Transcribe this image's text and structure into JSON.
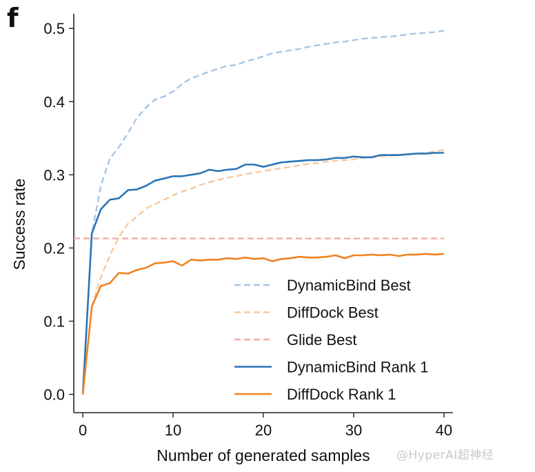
{
  "panel_label": "f",
  "watermark": "@HyperAI超神经",
  "chart_data": {
    "type": "line",
    "xlabel": "Number of generated samples",
    "ylabel": "Success rate",
    "xlim": [
      -1,
      41
    ],
    "ylim": [
      -0.025,
      0.52
    ],
    "xticks": [
      0,
      10,
      20,
      30,
      40
    ],
    "yticks": [
      0.0,
      0.1,
      0.2,
      0.3,
      0.4,
      0.5
    ],
    "ytick_labels": [
      "0.0",
      "0.1",
      "0.2",
      "0.3",
      "0.4",
      "0.5"
    ],
    "grid": false,
    "legend_position": "lower right",
    "series": [
      {
        "name": "DynamicBind Best",
        "color": "#a9c5e3",
        "style": "dashed",
        "x": [
          0,
          1,
          2,
          3,
          4,
          5,
          6,
          7,
          8,
          9,
          10,
          11,
          12,
          13,
          14,
          15,
          16,
          17,
          18,
          19,
          20,
          21,
          22,
          23,
          24,
          25,
          26,
          27,
          28,
          29,
          30,
          31,
          32,
          33,
          34,
          35,
          36,
          37,
          38,
          39,
          40
        ],
        "y": [
          0.0,
          0.22,
          0.285,
          0.322,
          0.338,
          0.357,
          0.378,
          0.392,
          0.403,
          0.407,
          0.414,
          0.424,
          0.432,
          0.436,
          0.441,
          0.445,
          0.449,
          0.45,
          0.455,
          0.458,
          0.462,
          0.466,
          0.468,
          0.47,
          0.472,
          0.475,
          0.477,
          0.479,
          0.481,
          0.482,
          0.484,
          0.486,
          0.487,
          0.488,
          0.489,
          0.49,
          0.492,
          0.493,
          0.494,
          0.495,
          0.497
        ]
      },
      {
        "name": "DiffDock Best",
        "color": "#f7c89d",
        "style": "dashed",
        "x": [
          0,
          1,
          2,
          3,
          4,
          5,
          6,
          7,
          8,
          9,
          10,
          11,
          12,
          13,
          14,
          15,
          16,
          17,
          18,
          19,
          20,
          21,
          22,
          23,
          24,
          25,
          26,
          27,
          28,
          29,
          30,
          31,
          32,
          33,
          34,
          35,
          36,
          37,
          38,
          39,
          40
        ],
        "y": [
          0.0,
          0.12,
          0.16,
          0.19,
          0.215,
          0.233,
          0.243,
          0.254,
          0.26,
          0.266,
          0.272,
          0.277,
          0.281,
          0.286,
          0.29,
          0.293,
          0.296,
          0.298,
          0.301,
          0.303,
          0.305,
          0.307,
          0.309,
          0.311,
          0.313,
          0.315,
          0.316,
          0.318,
          0.319,
          0.32,
          0.321,
          0.323,
          0.324,
          0.325,
          0.326,
          0.327,
          0.328,
          0.329,
          0.33,
          0.332,
          0.334
        ]
      },
      {
        "name": "Glide Best",
        "color": "#f2aaa9",
        "style": "dashed",
        "x": [
          -1,
          40
        ],
        "y": [
          0.213,
          0.213
        ]
      },
      {
        "name": "DynamicBind Rank 1",
        "color": "#2a74b5",
        "style": "solid",
        "x": [
          0,
          1,
          2,
          3,
          4,
          5,
          6,
          7,
          8,
          9,
          10,
          11,
          12,
          13,
          14,
          15,
          16,
          17,
          18,
          19,
          20,
          21,
          22,
          23,
          24,
          25,
          26,
          27,
          28,
          29,
          30,
          31,
          32,
          33,
          34,
          35,
          36,
          37,
          38,
          39,
          40
        ],
        "y": [
          0.0,
          0.22,
          0.253,
          0.266,
          0.268,
          0.279,
          0.28,
          0.285,
          0.292,
          0.295,
          0.298,
          0.298,
          0.3,
          0.302,
          0.307,
          0.305,
          0.307,
          0.308,
          0.314,
          0.314,
          0.311,
          0.314,
          0.317,
          0.318,
          0.319,
          0.32,
          0.32,
          0.321,
          0.323,
          0.323,
          0.325,
          0.324,
          0.324,
          0.327,
          0.327,
          0.327,
          0.328,
          0.329,
          0.329,
          0.33,
          0.33
        ]
      },
      {
        "name": "DiffDock Rank 1",
        "color": "#f0821f",
        "style": "solid",
        "x": [
          0,
          1,
          2,
          3,
          4,
          5,
          6,
          7,
          8,
          9,
          10,
          11,
          12,
          13,
          14,
          15,
          16,
          17,
          18,
          19,
          20,
          21,
          22,
          23,
          24,
          25,
          26,
          27,
          28,
          29,
          30,
          31,
          32,
          33,
          34,
          35,
          36,
          37,
          38,
          39,
          40
        ],
        "y": [
          0.0,
          0.12,
          0.148,
          0.152,
          0.166,
          0.165,
          0.17,
          0.173,
          0.179,
          0.18,
          0.182,
          0.176,
          0.184,
          0.183,
          0.184,
          0.184,
          0.186,
          0.185,
          0.187,
          0.185,
          0.186,
          0.182,
          0.185,
          0.186,
          0.188,
          0.187,
          0.187,
          0.188,
          0.19,
          0.186,
          0.19,
          0.19,
          0.191,
          0.19,
          0.191,
          0.189,
          0.191,
          0.191,
          0.192,
          0.191,
          0.192
        ]
      }
    ]
  }
}
